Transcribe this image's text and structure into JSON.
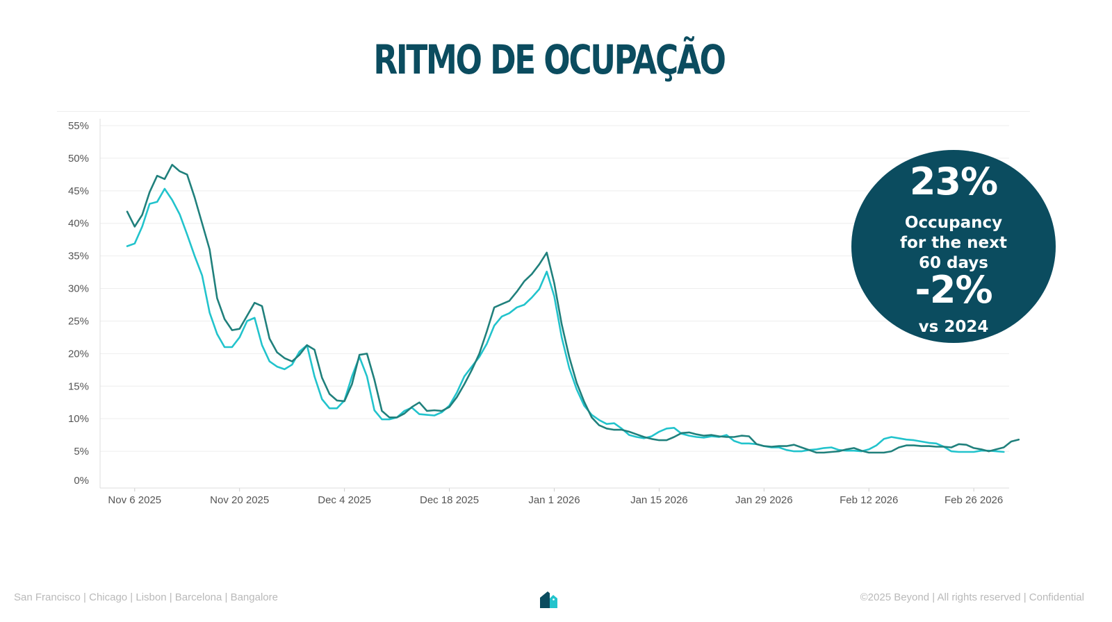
{
  "page": {
    "title": "RITMO DE OCUPAÇÃO",
    "footer_left": "San Francisco | Chicago | Lisbon | Barcelona | Bangalore",
    "footer_right": "©2025 Beyond | All rights reserved | Confidential"
  },
  "badge": {
    "value": "23%",
    "line1": "Occupancy",
    "line2": "for the next",
    "line3": "60 days",
    "delta": "-2%",
    "compare": "vs 2024",
    "color": "#0b4c5f"
  },
  "colors": {
    "series_a": "#20807c",
    "series_b": "#22c3cc",
    "title": "#0b4c5f",
    "logo_dark": "#0b4c5f",
    "logo_light": "#22c3cc"
  },
  "chart_data": {
    "type": "line",
    "ylim": [
      0,
      55
    ],
    "y_ticks": [
      "0%",
      "5%",
      "10%",
      "15%",
      "20%",
      "25%",
      "30%",
      "35%",
      "40%",
      "45%",
      "50%",
      "55%"
    ],
    "x_ticks": [
      "Nov 6 2025",
      "Nov 20 2025",
      "Dec 4 2025",
      "Dec 18 2025",
      "Jan 1 2026",
      "Jan 15 2026",
      "Jan 29 2026",
      "Feb 12 2026",
      "Feb 26 2026"
    ],
    "x_start": "2025-11-05",
    "grid": true,
    "series": [
      {
        "values": [
          41.8,
          39.5,
          41.3,
          44.8,
          47.3,
          46.8,
          49.0,
          48.0,
          47.5,
          44.0,
          40.0,
          36.0,
          28.5,
          25.3,
          23.6,
          23.8,
          25.8,
          27.8,
          27.3,
          22.3,
          20.2,
          19.3,
          18.8,
          19.8,
          21.3,
          20.6,
          16.3,
          13.8,
          12.8,
          12.7,
          15.3,
          19.8,
          20.0,
          16.0,
          11.2,
          10.2,
          10.2,
          10.8,
          11.8,
          12.5,
          11.2,
          11.3,
          11.2,
          11.8,
          13.3,
          15.3,
          17.5,
          20.0,
          23.4,
          27.1,
          27.6,
          28.1,
          29.5,
          31.1,
          32.2,
          33.7,
          35.5,
          30.8,
          24.5,
          19.5,
          15.5,
          12.6,
          10.2,
          9.0,
          8.5,
          8.3,
          8.3,
          8.0,
          7.6,
          7.2,
          6.9,
          6.7,
          6.7,
          7.2,
          7.8,
          7.9,
          7.6,
          7.4,
          7.5,
          7.3,
          7.2,
          7.2,
          7.4,
          7.3,
          6.1,
          5.8,
          5.7,
          5.8,
          5.8,
          6.0,
          5.6,
          5.2,
          4.8,
          4.8,
          4.9,
          5.0,
          5.3,
          5.5,
          5.1,
          4.8,
          4.8,
          4.8,
          5.0,
          5.6,
          5.9,
          5.9,
          5.8,
          5.8,
          5.7,
          5.7,
          5.6,
          6.1,
          6.0,
          5.5,
          5.3,
          5.0,
          5.3,
          5.6,
          6.5,
          6.8
        ]
      },
      {
        "values": [
          36.5,
          36.9,
          39.5,
          43.0,
          43.3,
          45.3,
          43.6,
          41.4,
          38.3,
          35.0,
          32.0,
          26.3,
          23.0,
          21.0,
          21.0,
          22.5,
          25.0,
          25.5,
          21.3,
          18.8,
          18.0,
          17.6,
          18.3,
          20.3,
          21.3,
          16.5,
          13.0,
          11.6,
          11.6,
          12.8,
          16.5,
          19.5,
          16.5,
          11.3,
          9.9,
          9.9,
          10.2,
          11.2,
          11.7,
          10.7,
          10.6,
          10.5,
          11.0,
          12.0,
          14.0,
          16.5,
          18.0,
          19.5,
          21.5,
          24.3,
          25.7,
          26.2,
          27.1,
          27.5,
          28.6,
          29.9,
          32.6,
          28.8,
          22.5,
          17.8,
          14.5,
          12.0,
          10.6,
          9.8,
          9.2,
          9.3,
          8.5,
          7.5,
          7.2,
          7.0,
          7.3,
          8.0,
          8.5,
          8.6,
          7.7,
          7.4,
          7.2,
          7.1,
          7.3,
          7.2,
          7.5,
          6.6,
          6.2,
          6.2,
          6.1,
          5.8,
          5.6,
          5.6,
          5.2,
          5.0,
          5.0,
          5.2,
          5.3,
          5.5,
          5.6,
          5.2,
          5.1,
          5.1,
          5.0,
          5.3,
          5.9,
          6.9,
          7.2,
          7.0,
          6.8,
          6.7,
          6.5,
          6.3,
          6.2,
          5.7,
          5.0,
          4.9,
          4.9,
          4.9,
          5.1,
          5.1,
          5.0,
          4.9
        ]
      }
    ]
  }
}
